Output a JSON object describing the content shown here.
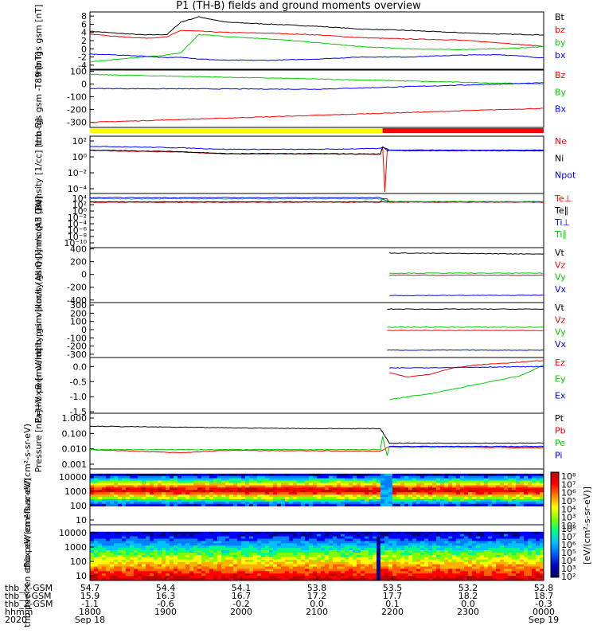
{
  "title": "P1 (TH-B) fields and ground moments overview",
  "chart_data": [
    {
      "type": "line",
      "ylabel": "thb fgs gsm [nT]",
      "yticks": [
        "8",
        "6",
        "4",
        "2",
        "0",
        "-2",
        "-4"
      ],
      "ylim": [
        -5,
        9
      ],
      "x": [
        0,
        0.06,
        0.12,
        0.17,
        0.2,
        0.24,
        0.3,
        0.4,
        0.5,
        0.6,
        0.7,
        0.8,
        0.9,
        1.0
      ],
      "series": [
        {
          "name": "Bt",
          "color": "#000000",
          "values": [
            4.3,
            3.8,
            3.4,
            3.5,
            6.5,
            7.8,
            6.5,
            6.0,
            5.5,
            4.8,
            4.5,
            4.0,
            3.6,
            3.4
          ]
        },
        {
          "name": "bz",
          "color": "#ff0000",
          "values": [
            3.6,
            3.0,
            2.6,
            2.9,
            4.5,
            4.3,
            4.0,
            3.8,
            3.4,
            2.7,
            2.4,
            2.2,
            1.5,
            0.6
          ]
        },
        {
          "name": "by",
          "color": "#00cc00",
          "values": [
            -3.2,
            -2.6,
            -2.0,
            -1.5,
            -1.0,
            3.5,
            3.0,
            2.4,
            1.5,
            0.5,
            0.0,
            -0.2,
            0.0,
            0.5
          ]
        },
        {
          "name": "bx",
          "color": "#0000ff",
          "values": [
            -1.3,
            -1.5,
            -1.8,
            -2.2,
            -2.0,
            -2.5,
            -2.8,
            -2.8,
            -2.5,
            -2.0,
            -2.0,
            -1.6,
            -1.4,
            -2.2
          ]
        }
      ]
    },
    {
      "type": "line",
      "ylabel": "thb fgs gsm -T89 [nT]",
      "yticks": [
        "100",
        "0",
        "-100",
        "-200",
        "-300"
      ],
      "ylim": [
        -340,
        110
      ],
      "x": [
        0,
        0.5,
        1.0
      ],
      "series": [
        {
          "name": "Bz",
          "color": "#ff0000",
          "values": [
            -300,
            -245,
            -190
          ]
        },
        {
          "name": "By",
          "color": "#00cc00",
          "values": [
            75,
            40,
            0
          ]
        },
        {
          "name": "Bx",
          "color": "#0000ff",
          "values": [
            -35,
            -40,
            10
          ]
        }
      ]
    },
    {
      "type": "line",
      "ylabel": "Density [1/cc] [cm-3]",
      "log": true,
      "yticks": [
        "10²",
        "10⁰",
        "10⁻²",
        "10⁻⁴"
      ],
      "ylim": [
        -5,
        2.4
      ],
      "series": [
        {
          "name": "Ne",
          "color": "#ff0000",
          "points": [
            [
              0,
              0.55
            ],
            [
              0.2,
              0.35
            ],
            [
              0.3,
              0.1
            ],
            [
              0.5,
              0.1
            ],
            [
              0.64,
              0.05
            ],
            [
              0.645,
              1.0
            ],
            [
              0.65,
              -4.8
            ],
            [
              0.655,
              0.5
            ],
            [
              0.66,
              0.6
            ],
            [
              0.7,
              0.5
            ],
            [
              1.0,
              0.5
            ]
          ]
        },
        {
          "name": "Ni",
          "color": "#000000",
          "points": [
            [
              0,
              0.6
            ],
            [
              0.2,
              0.4
            ],
            [
              0.3,
              0.15
            ],
            [
              0.5,
              0.15
            ],
            [
              0.64,
              0.1
            ],
            [
              0.645,
              1.0
            ],
            [
              0.655,
              0.6
            ],
            [
              0.66,
              0.6
            ],
            [
              1.0,
              0.55
            ]
          ]
        },
        {
          "name": "Npot",
          "color": "#0000ff",
          "points": [
            [
              0,
              1.1
            ],
            [
              0.2,
              0.9
            ],
            [
              0.3,
              0.7
            ],
            [
              0.5,
              0.7
            ],
            [
              0.64,
              0.8
            ],
            [
              0.645,
              1.0
            ],
            [
              0.66,
              0.6
            ],
            [
              1.0,
              0.6
            ]
          ]
        }
      ]
    },
    {
      "type": "line",
      "ylabel": "moqt3 [eV]",
      "log": true,
      "yticks": [
        "10⁴",
        "10²",
        "10⁰",
        "10⁻²",
        "10⁻⁴",
        "10⁻⁶",
        "10⁻⁸",
        "10⁻¹⁰"
      ],
      "ylim": [
        -11,
        4.5
      ],
      "series": [
        {
          "name": "Te⊥",
          "color": "#ff0000",
          "points": [
            [
              0,
              2.0
            ],
            [
              0.64,
              2.0
            ],
            [
              0.645,
              3.0
            ],
            [
              0.655,
              3.0
            ],
            [
              0.66,
              2.0
            ],
            [
              1.0,
              2.0
            ]
          ]
        },
        {
          "name": "Te∥",
          "color": "#000000",
          "points": [
            [
              0,
              2.1
            ],
            [
              1.0,
              2.1
            ]
          ]
        },
        {
          "name": "Ti⊥",
          "color": "#0000ff",
          "points": [
            [
              0,
              3.3
            ],
            [
              0.64,
              3.3
            ],
            [
              0.66,
              2.1
            ],
            [
              1.0,
              2.1
            ]
          ]
        },
        {
          "name": "Ti∥",
          "color": "#00cc00",
          "points": [
            [
              0,
              3.0
            ],
            [
              0.64,
              3.0
            ],
            [
              0.66,
              2.2
            ],
            [
              1.0,
              2.2
            ]
          ]
        }
      ]
    },
    {
      "type": "line",
      "ylabel": "thb peir velocity gsm [km/s (All Qs)]",
      "yticks": [
        "400",
        "200",
        "0",
        "-200",
        "-400"
      ],
      "ylim": [
        -440,
        420
      ],
      "series": [
        {
          "name": "Vt",
          "color": "#000000",
          "points": [
            [
              0.66,
              335
            ],
            [
              1.0,
              320
            ]
          ]
        },
        {
          "name": "Vz",
          "color": "#ff0000",
          "points": [
            [
              0.66,
              -10
            ],
            [
              1.0,
              -10
            ]
          ]
        },
        {
          "name": "Vy",
          "color": "#00cc00",
          "points": [
            [
              0.66,
              20
            ],
            [
              1.0,
              20
            ]
          ]
        },
        {
          "name": "Vx",
          "color": "#0000ff",
          "points": [
            [
              0.66,
              -330
            ],
            [
              1.0,
              -325
            ]
          ]
        }
      ]
    },
    {
      "type": "line",
      "ylabel": "thb peer velocity gsm [km/s (All Qs)]",
      "yticks": [
        "300",
        "200",
        "100",
        "0",
        "-100",
        "-200",
        "-300"
      ],
      "ylim": [
        -340,
        330
      ],
      "series": [
        {
          "name": "Vt",
          "color": "#000000",
          "points": [
            [
              0.655,
              250
            ],
            [
              1.0,
              250
            ]
          ]
        },
        {
          "name": "Vz",
          "color": "#ff0000",
          "points": [
            [
              0.655,
              -10
            ],
            [
              1.0,
              -10
            ]
          ]
        },
        {
          "name": "Vy",
          "color": "#00cc00",
          "points": [
            [
              0.655,
              30
            ],
            [
              1.0,
              30
            ]
          ]
        },
        {
          "name": "Vx",
          "color": "#0000ff",
          "points": [
            [
              0.655,
              -250
            ],
            [
              1.0,
              -250
            ]
          ]
        }
      ]
    },
    {
      "type": "line",
      "ylabel": "E=−V×B [mV/m]",
      "yticks": [
        "0.0",
        "-0.5",
        "-1.0",
        "-1.5"
      ],
      "ylim": [
        -1.55,
        0.3
      ],
      "series": [
        {
          "name": "Ez",
          "color": "#ff0000",
          "points": [
            [
              0.66,
              -0.2
            ],
            [
              0.7,
              -0.35
            ],
            [
              0.75,
              -0.25
            ],
            [
              0.8,
              -0.05
            ],
            [
              0.85,
              0.05
            ],
            [
              0.9,
              0.1
            ],
            [
              0.95,
              0.15
            ],
            [
              1.0,
              0.2
            ]
          ]
        },
        {
          "name": "Ey",
          "color": "#00cc00",
          "points": [
            [
              0.66,
              -1.1
            ],
            [
              0.7,
              -1.0
            ],
            [
              0.75,
              -0.9
            ],
            [
              0.8,
              -0.75
            ],
            [
              0.85,
              -0.6
            ],
            [
              0.9,
              -0.45
            ],
            [
              0.95,
              -0.3
            ],
            [
              1.0,
              0.05
            ]
          ]
        },
        {
          "name": "Ex",
          "color": "#0000ff",
          "points": [
            [
              0.66,
              -0.05
            ],
            [
              1.0,
              0.0
            ]
          ]
        }
      ]
    },
    {
      "type": "line",
      "ylabel": "Pressure [nPa]",
      "log": true,
      "yticks": [
        "1.000",
        "0.100",
        "0.010",
        "0.001"
      ],
      "ylim": [
        -3.2,
        0.25
      ],
      "series": [
        {
          "name": "Pt",
          "color": "#000000",
          "points": [
            [
              0,
              -0.55
            ],
            [
              0.3,
              -0.65
            ],
            [
              0.5,
              -0.7
            ],
            [
              0.64,
              -0.7
            ],
            [
              0.66,
              -1.6
            ],
            [
              1.0,
              -1.6
            ]
          ]
        },
        {
          "name": "Pb",
          "color": "#ff0000",
          "points": [
            [
              0,
              -2.0
            ],
            [
              0.1,
              -2.1
            ],
            [
              0.2,
              -2.2
            ],
            [
              0.3,
              -2.05
            ],
            [
              0.64,
              -2.1
            ],
            [
              0.66,
              -1.8
            ],
            [
              0.8,
              -1.85
            ],
            [
              1.0,
              -1.9
            ]
          ]
        },
        {
          "name": "Pe",
          "color": "#00cc00",
          "points": [
            [
              0,
              -2.0
            ],
            [
              0.64,
              -2.0
            ],
            [
              0.645,
              -1.2
            ],
            [
              0.655,
              -2.4
            ],
            [
              0.66,
              -1.85
            ],
            [
              1.0,
              -1.85
            ]
          ]
        },
        {
          "name": "Pi",
          "color": "#0000ff",
          "points": [
            [
              0.66,
              -1.8
            ],
            [
              1.0,
              -1.8
            ]
          ]
        }
      ]
    },
    {
      "type": "heatmap",
      "ylabel": "thb peir en eflux eV/(cm²-s-sr-eV)",
      "yticks": [
        "10000",
        "1000",
        "100",
        "10"
      ],
      "ylim_log": [
        0.8,
        4.2
      ],
      "band_center_log": 2.9
    },
    {
      "type": "heatmap",
      "ylabel": "thb peer en eflux eV/(cm²-s-sr-eV)",
      "yticks": [
        "10000",
        "1000",
        "100",
        "10"
      ],
      "ylim_log": [
        0.75,
        4.1
      ],
      "band_center_log": 1.6
    }
  ],
  "colorbar": {
    "label": "[eV/(cm²-s-sr-eV)]",
    "ticks_upper": [
      "10⁸",
      "10⁷",
      "10⁶",
      "10⁵",
      "10⁴",
      "10³",
      "10²"
    ],
    "ticks_lower": [
      "10⁸",
      "10⁷",
      "10⁶",
      "10⁵",
      "10⁴",
      "10³",
      "10²"
    ]
  },
  "xaxis": {
    "rows": [
      {
        "label": "thb_X-GSM",
        "values": [
          "54.7",
          "54.4",
          "54.1",
          "53.8",
          "53.5",
          "53.2",
          "52.8"
        ]
      },
      {
        "label": "thb_Y-GSM",
        "values": [
          "15.9",
          "16.3",
          "16.7",
          "17.2",
          "17.7",
          "18.2",
          "18.7"
        ]
      },
      {
        "label": "thb_Z-GSM",
        "values": [
          "-1.1",
          "-0.6",
          "-0.2",
          "0.0",
          "0.1",
          "0.0",
          "-0.3"
        ]
      },
      {
        "label": "hhmm",
        "values": [
          "1800",
          "1900",
          "2000",
          "2100",
          "2200",
          "2300",
          "0000"
        ]
      },
      {
        "label": "2020",
        "values": [
          "Sep 18",
          "",
          "",
          "",
          "",
          "",
          "Sep 19"
        ]
      }
    ]
  },
  "mode_bar": {
    "yellow_until": 0.645,
    "red_from": 0.645
  }
}
